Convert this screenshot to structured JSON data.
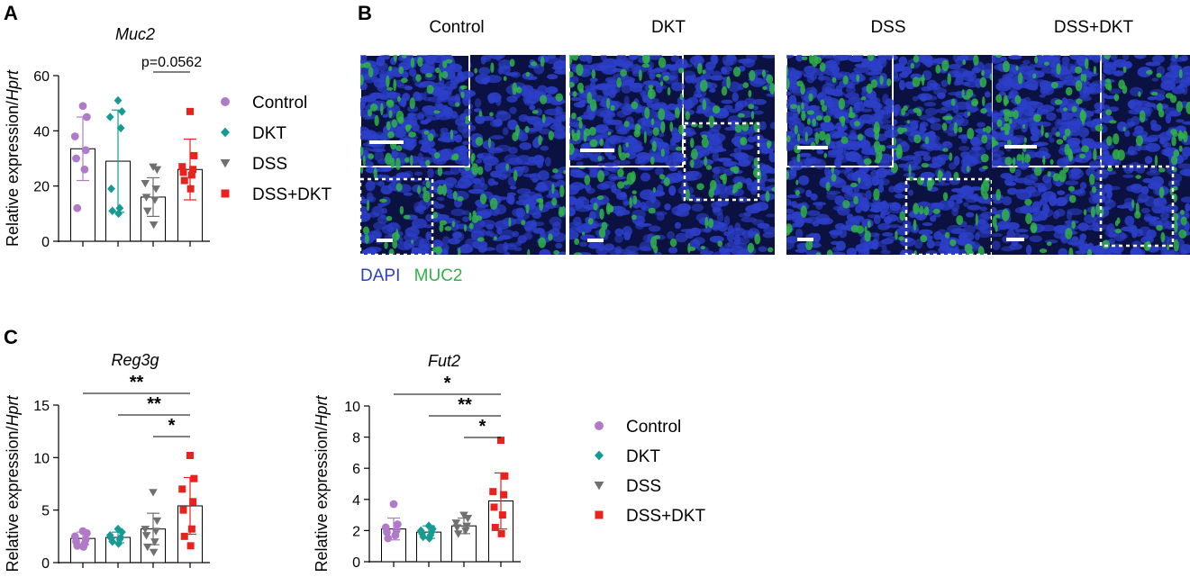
{
  "panels": {
    "a": "A",
    "b": "B",
    "c": "C"
  },
  "colors": {
    "Control": "#b07ac8",
    "DKT": "#159b94",
    "DSS": "#707070",
    "DSS+DKT": "#e8231d",
    "dapi": "#2c3fc8",
    "muc2": "#2fb24a"
  },
  "microscopy": {
    "titles": [
      "Control",
      "DKT",
      "DSS",
      "DSS+DKT"
    ],
    "legend": {
      "dapi": "DAPI",
      "muc2": "MUC2"
    }
  },
  "legend_entries": [
    {
      "label": "Control",
      "marker": "circle"
    },
    {
      "label": "DKT",
      "marker": "diamond"
    },
    {
      "label": "DSS",
      "marker": "triangle-down"
    },
    {
      "label": "DSS+DKT",
      "marker": "square"
    }
  ],
  "chart_data": [
    {
      "id": "muc2",
      "type": "bar",
      "title": "Muc2",
      "ylabel": "Relative expression/Hprt",
      "ylim": [
        0,
        60
      ],
      "yticks": [
        0,
        20,
        40,
        60
      ],
      "categories": [
        "Control",
        "DKT",
        "DSS",
        "DSS+DKT"
      ],
      "values": [
        33.5,
        29,
        16,
        26
      ],
      "errors": [
        11.5,
        18.5,
        7,
        11
      ],
      "points": [
        [
          49,
          45,
          38,
          33,
          30,
          26,
          12
        ],
        [
          51,
          47,
          45,
          41,
          19,
          12,
          11,
          10
        ],
        [
          27,
          26,
          21,
          19,
          16,
          15,
          11,
          6
        ],
        [
          47,
          31,
          27,
          26,
          25,
          24,
          22,
          19
        ]
      ],
      "annotations": [
        {
          "from": 2,
          "to": 3,
          "label": "p=0.0562"
        }
      ]
    },
    {
      "id": "reg3g",
      "type": "bar",
      "title": "Reg3g",
      "ylabel": "Relative expression/Hprt",
      "ylim": [
        0,
        15
      ],
      "yticks": [
        0,
        5,
        10,
        15
      ],
      "categories": [
        "Control",
        "DKT",
        "DSS",
        "DSS+DKT"
      ],
      "values": [
        2.3,
        2.4,
        3.2,
        5.4
      ],
      "errors": [
        0.6,
        0.5,
        1.5,
        2.7
      ],
      "points": [
        [
          3.0,
          2.8,
          2.5,
          2.2,
          2.0,
          1.8,
          1.6,
          1.5
        ],
        [
          3.2,
          2.9,
          2.6,
          2.4,
          2.3,
          2.2,
          2.0,
          1.8
        ],
        [
          6.7,
          4.0,
          3.2,
          3.0,
          2.6,
          2.0,
          1.5,
          1.0
        ],
        [
          10.2,
          8.0,
          7.0,
          5.8,
          5.0,
          3.2,
          2.5,
          1.6
        ]
      ],
      "annotations": [
        {
          "from": 0,
          "to": 3,
          "label": "**"
        },
        {
          "from": 1,
          "to": 3,
          "label": "**"
        },
        {
          "from": 2,
          "to": 3,
          "label": "*"
        }
      ]
    },
    {
      "id": "fut2",
      "type": "bar",
      "title": "Fut2",
      "ylabel": "Relative expression/Hprt",
      "ylim": [
        0,
        10
      ],
      "yticks": [
        0,
        2,
        4,
        6,
        8,
        10
      ],
      "categories": [
        "Control",
        "DKT",
        "DSS",
        "DSS+DKT"
      ],
      "values": [
        2.1,
        1.9,
        2.3,
        3.9
      ],
      "errors": [
        0.7,
        0.4,
        0.5,
        1.8
      ],
      "points": [
        [
          3.7,
          2.4,
          2.2,
          2.0,
          1.9,
          1.7,
          1.5
        ],
        [
          2.3,
          2.1,
          2.0,
          1.9,
          1.8,
          1.7,
          1.6,
          1.5
        ],
        [
          3.0,
          2.8,
          2.5,
          2.3,
          2.2,
          2.0,
          1.8
        ],
        [
          7.8,
          5.5,
          4.5,
          4.3,
          3.5,
          3.0,
          2.2,
          1.8
        ]
      ],
      "annotations": [
        {
          "from": 0,
          "to": 3,
          "label": "*"
        },
        {
          "from": 1,
          "to": 3,
          "label": "**"
        },
        {
          "from": 2,
          "to": 3,
          "label": "*"
        }
      ]
    }
  ]
}
